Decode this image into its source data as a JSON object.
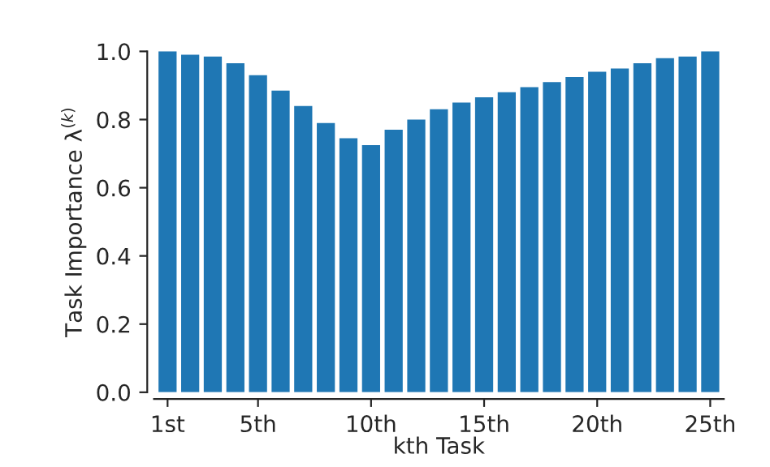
{
  "chart_data": {
    "type": "bar",
    "xlabel": "kth Task",
    "ylabel": "Task Importance λ$^{(k)}$",
    "categories": [
      "1st",
      null,
      null,
      null,
      "5th",
      null,
      null,
      null,
      null,
      "10th",
      null,
      null,
      null,
      null,
      "15th",
      null,
      null,
      null,
      null,
      "20th",
      null,
      null,
      null,
      null,
      "25th"
    ],
    "values": [
      1.0,
      0.99,
      0.985,
      0.965,
      0.93,
      0.885,
      0.84,
      0.79,
      0.745,
      0.725,
      0.77,
      0.8,
      0.83,
      0.85,
      0.865,
      0.88,
      0.895,
      0.91,
      0.925,
      0.94,
      0.95,
      0.965,
      0.98,
      0.985,
      1.0
    ],
    "color": "#1f77b4",
    "ylim": [
      0,
      1.0
    ],
    "yticks": [
      {
        "value": 0,
        "label": "0.0"
      },
      {
        "value": 0.2,
        "label": "0.2"
      },
      {
        "value": 0.4,
        "label": "0.4"
      },
      {
        "value": 0.6,
        "label": "0.6"
      },
      {
        "value": 0.8,
        "label": "0.8"
      },
      {
        "value": 1.0,
        "label": "1.0"
      }
    ],
    "grid": false
  }
}
